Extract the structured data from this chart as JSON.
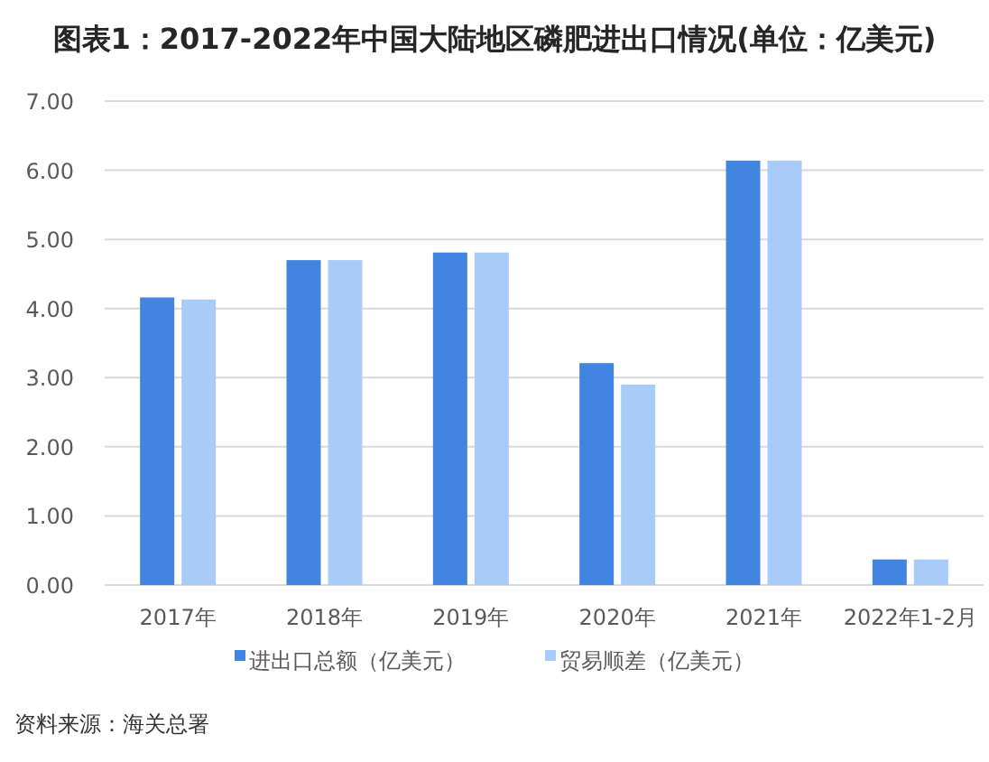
{
  "chart_data": {
    "type": "bar",
    "title": "图表1：2017-2022年中国大陆地区磷肥进出口情况(单位：亿美元)",
    "categories": [
      "2017年",
      "2018年",
      "2019年",
      "2020年",
      "2021年",
      "2022年1-2月"
    ],
    "series": [
      {
        "name": "进出口总额（亿美元）",
        "color": "#4285e0",
        "values": [
          4.16,
          4.7,
          4.81,
          3.21,
          6.14,
          0.37
        ]
      },
      {
        "name": "贸易顺差（亿美元）",
        "color": "#a9cbf7",
        "values": [
          4.13,
          4.7,
          4.81,
          2.9,
          6.14,
          0.37
        ]
      }
    ],
    "ylim": [
      0,
      7
    ],
    "yticks": [
      {
        "value": 0,
        "label": "0.00"
      },
      {
        "value": 1,
        "label": "1.00"
      },
      {
        "value": 2,
        "label": "2.00"
      },
      {
        "value": 3,
        "label": "3.00"
      },
      {
        "value": 4,
        "label": "4.00"
      },
      {
        "value": 5,
        "label": "5.00"
      },
      {
        "value": 6,
        "label": "6.00"
      },
      {
        "value": 7,
        "label": "7.00"
      }
    ],
    "grid": "y",
    "legend": "bottom",
    "annotations": [
      "资料来源：海关总署"
    ]
  }
}
